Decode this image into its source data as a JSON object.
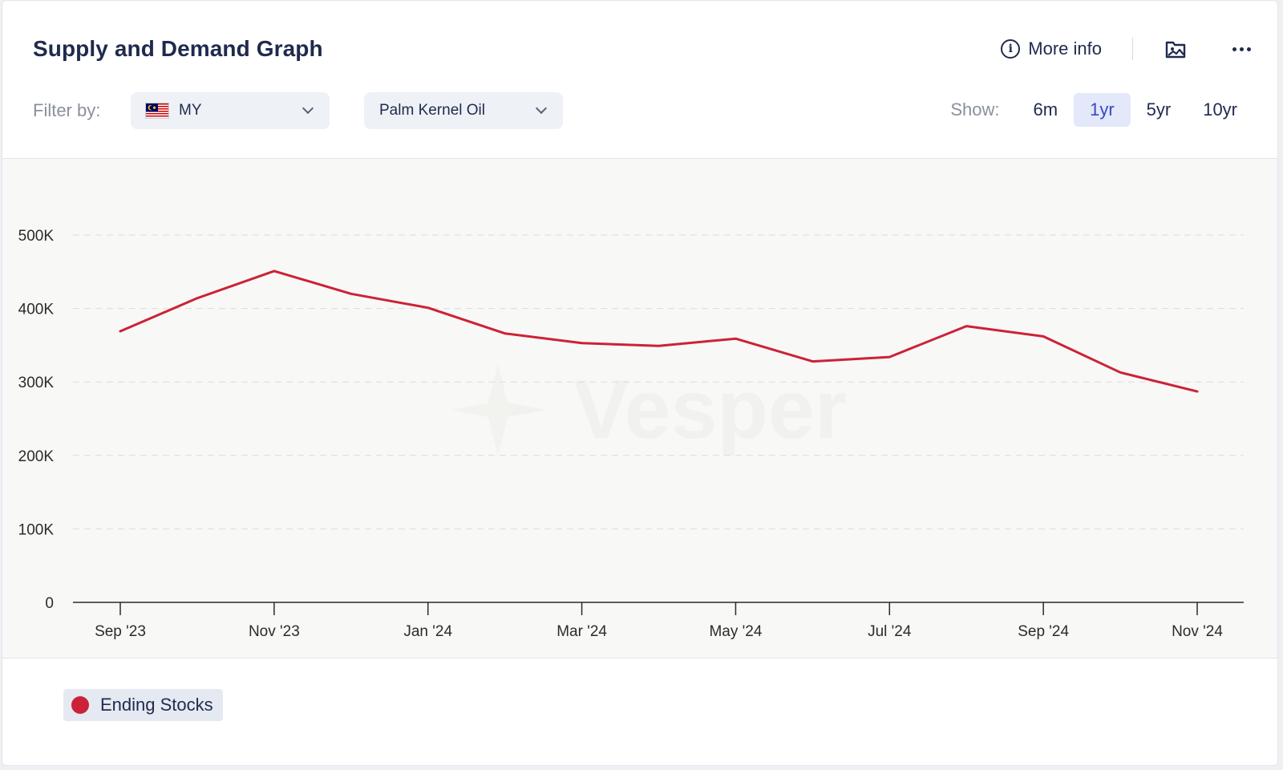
{
  "header": {
    "title": "Supply and Demand Graph",
    "more_info": "More info"
  },
  "filters": {
    "label": "Filter by:",
    "country": "MY",
    "product": "Palm Kernel Oil"
  },
  "show": {
    "label": "Show:",
    "ranges": [
      "6m",
      "1yr",
      "5yr",
      "10yr"
    ],
    "active": "1yr"
  },
  "watermark": "Vesper",
  "colors": {
    "series": "#cc2236",
    "active_range_bg": "#e3e8fb",
    "active_range_text": "#3848c6"
  },
  "chart_data": {
    "type": "line",
    "x": [
      "Sep '23",
      "Oct '23",
      "Nov '23",
      "Dec '23",
      "Jan '24",
      "Feb '24",
      "Mar '24",
      "Apr '24",
      "May '24",
      "Jun '24",
      "Jul '24",
      "Aug '24",
      "Sep '24",
      "Oct '24",
      "Nov '24"
    ],
    "x_tick_labels": [
      "Sep '23",
      "Nov '23",
      "Jan '24",
      "Mar '24",
      "May '24",
      "Jul '24",
      "Sep '24",
      "Nov '24"
    ],
    "y_tick_labels": [
      "0",
      "100K",
      "200K",
      "300K",
      "400K",
      "500K"
    ],
    "ylim": [
      0,
      500000
    ],
    "grid": true,
    "legend_position": "bottom-left",
    "series": [
      {
        "name": "Ending Stocks",
        "values": [
          369000,
          414000,
          451000,
          420000,
          401000,
          366000,
          353000,
          349000,
          359000,
          328000,
          334000,
          376000,
          362000,
          313000,
          287000
        ]
      }
    ]
  }
}
